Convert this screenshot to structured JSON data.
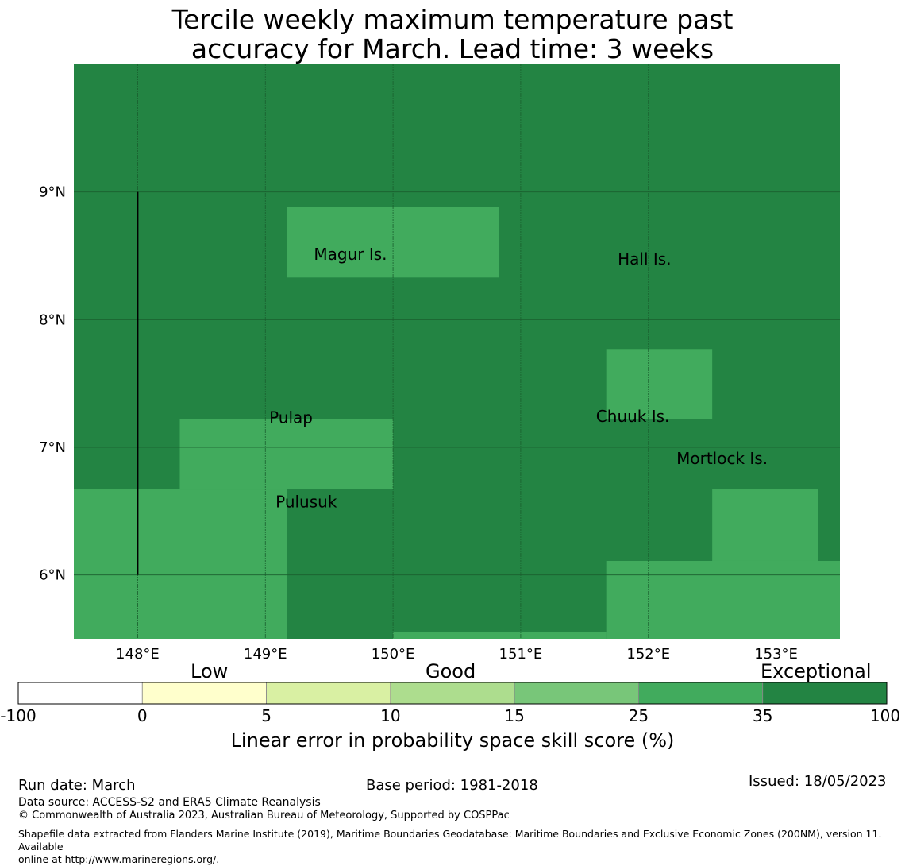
{
  "title_line1": "Tercile weekly maximum temperature past",
  "title_line2": "accuracy for March. Lead time: 3 weeks",
  "map": {
    "lon_range": [
      147.5,
      153.5
    ],
    "lat_range": [
      5.5,
      10
    ],
    "lon_ticks": [
      {
        "value": 148,
        "label": "148°E"
      },
      {
        "value": 149,
        "label": "149°E"
      },
      {
        "value": 150,
        "label": "150°E"
      },
      {
        "value": 151,
        "label": "151°E"
      },
      {
        "value": 152,
        "label": "152°E"
      },
      {
        "value": 153,
        "label": "153°E"
      }
    ],
    "lat_ticks": [
      {
        "value": 6,
        "label": "6°N"
      },
      {
        "value": 7,
        "label": "7°N"
      },
      {
        "value": 8,
        "label": "8°N"
      },
      {
        "value": 9,
        "label": "9°N"
      }
    ],
    "colors": {
      "exceptional": "#238443",
      "high": "#41ab5d",
      "grid": "#1a5e2e"
    },
    "high_skill_cells": [
      {
        "lon": [
          149.17,
          150.83
        ],
        "lat": [
          8.33,
          8.88
        ]
      },
      {
        "lon": [
          148.33,
          150.0
        ],
        "lat": [
          6.67,
          7.22
        ]
      },
      {
        "lon": [
          147.5,
          149.17
        ],
        "lat": [
          5.5,
          6.67
        ]
      },
      {
        "lon": [
          150.0,
          151.67
        ],
        "lat": [
          5.5,
          5.55
        ]
      },
      {
        "lon": [
          151.67,
          153.5
        ],
        "lat": [
          5.5,
          6.11
        ]
      },
      {
        "lon": [
          152.5,
          153.33
        ],
        "lat": [
          6.11,
          6.67
        ]
      },
      {
        "lon": [
          151.67,
          152.5
        ],
        "lat": [
          7.22,
          7.77
        ]
      }
    ],
    "boundary_line": {
      "lon": 148.0,
      "lat": [
        6.0,
        9.0
      ]
    },
    "places": [
      {
        "name": "Magur Is.",
        "lon": 149.38,
        "lat": 8.52
      },
      {
        "name": "Hall Is.",
        "lon": 151.76,
        "lat": 8.48
      },
      {
        "name": "Pulap",
        "lon": 149.03,
        "lat": 7.24
      },
      {
        "name": "Chuuk Is.",
        "lon": 151.59,
        "lat": 7.25
      },
      {
        "name": "Mortlock Is.",
        "lon": 152.22,
        "lat": 6.92
      },
      {
        "name": "Pulusuk",
        "lon": 149.08,
        "lat": 6.58
      }
    ]
  },
  "colorbar": {
    "category_labels": [
      "Low",
      "Good",
      "Exceptional"
    ],
    "ticks": [
      "-100",
      "0",
      "5",
      "10",
      "15",
      "25",
      "35",
      "100"
    ],
    "colors": [
      "#ffffff",
      "#ffffcc",
      "#d9f0a3",
      "#addd8e",
      "#78c679",
      "#41ab5d",
      "#238443"
    ],
    "title": "Linear error in probability space skill score (%)"
  },
  "footer": {
    "run_date": "Run date: March",
    "base_period": "Base period: 1981-2018",
    "issued": "Issued: 18/05/2023",
    "data_source": "Data source: ACCESS-S2 and ERA5 Climate Reanalysis",
    "copyright": "© Commonwealth of Australia 2023, Australian Bureau of Meteorology, Supported by COSPPac",
    "shapefile_line1": "Shapefile data extracted from Flanders Marine Institute (2019), Maritime Boundaries Geodatabase: Maritime Boundaries and Exclusive Economic Zones (200NM), version 11. Available",
    "shapefile_line2": "online at http://www.marineregions.org/."
  }
}
